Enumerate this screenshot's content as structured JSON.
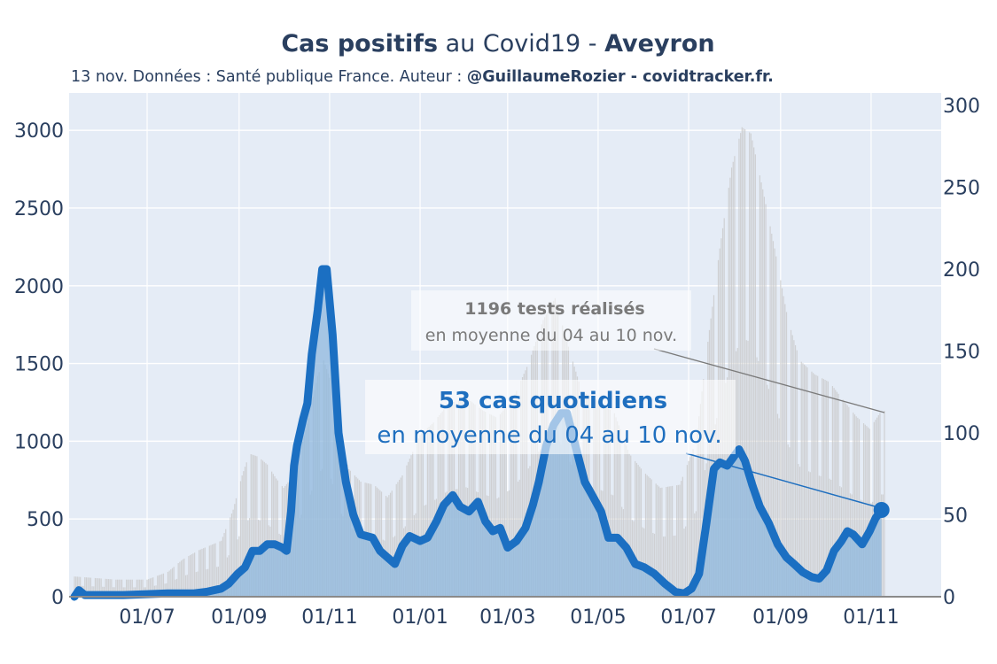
{
  "header": {
    "title_bold_1": "Cas positifs",
    "title_mid": " au Covid19 - ",
    "title_bold_2": "Aveyron",
    "subtitle_plain": "13 nov. Données : Santé publique France. Auteur : ",
    "subtitle_bold": "@GuillaumeRozier - covidtracker.fr."
  },
  "annotations": {
    "tests_line1": "1196 tests réalisés",
    "tests_line2": "en moyenne du 04 au 10 nov.",
    "cases_line1": "53 cas quotidiens",
    "cases_line2": "en moyenne du 04 au 10 nov."
  },
  "colors": {
    "plot_bg": "#e5ecf6",
    "cases_line": "#1b6fc2",
    "cases_fill": "#8fb8dd",
    "tests_bars": "#c7c7c7",
    "tests_leader": "#7a7a7a",
    "cases_leader": "#1f6fbf",
    "axis_text": "#2a3f5f"
  },
  "chart_data": {
    "type": "line",
    "x_start": "2020-05-13",
    "x_end": "2021-11-10",
    "x_tick_labels": [
      "01/07",
      "01/09",
      "01/11",
      "01/01",
      "01/03",
      "01/05",
      "01/07",
      "01/09",
      "01/11"
    ],
    "x_tick_dates": [
      "2020-07-01",
      "2020-09-01",
      "2020-11-01",
      "2021-01-01",
      "2021-03-01",
      "2021-05-01",
      "2021-07-01",
      "2021-09-01",
      "2021-11-01"
    ],
    "y_left_ticks": [
      0,
      500,
      1000,
      1500,
      2000,
      2500,
      3000
    ],
    "y_left_range": [
      0,
      3240
    ],
    "y_right_ticks": [
      0,
      50,
      100,
      150,
      200,
      250,
      300
    ],
    "y_right_range": [
      0,
      300
    ],
    "grid": true,
    "series": [
      {
        "axis": "right",
        "style": "thick-line-with-fill",
        "points": [
          [
            "2020-05-13",
            0
          ],
          [
            "2020-05-16",
            4
          ],
          [
            "2020-05-20",
            1
          ],
          [
            "2020-06-15",
            1
          ],
          [
            "2020-07-15",
            2
          ],
          [
            "2020-08-01",
            2
          ],
          [
            "2020-08-10",
            3
          ],
          [
            "2020-08-20",
            5
          ],
          [
            "2020-08-25",
            8
          ],
          [
            "2020-08-31",
            14
          ],
          [
            "2020-09-05",
            18
          ],
          [
            "2020-09-10",
            28
          ],
          [
            "2020-09-15",
            28
          ],
          [
            "2020-09-20",
            32
          ],
          [
            "2020-09-25",
            32
          ],
          [
            "2020-09-30",
            30
          ],
          [
            "2020-10-03",
            28
          ],
          [
            "2020-10-06",
            52
          ],
          [
            "2020-10-08",
            80
          ],
          [
            "2020-10-10",
            92
          ],
          [
            "2020-10-14",
            108
          ],
          [
            "2020-10-17",
            118
          ],
          [
            "2020-10-20",
            148
          ],
          [
            "2020-10-24",
            175
          ],
          [
            "2020-10-27",
            200
          ],
          [
            "2020-10-30",
            200
          ],
          [
            "2020-11-03",
            160
          ],
          [
            "2020-11-07",
            100
          ],
          [
            "2020-11-12",
            70
          ],
          [
            "2020-11-17",
            50
          ],
          [
            "2020-11-22",
            38
          ],
          [
            "2020-11-30",
            36
          ],
          [
            "2020-12-05",
            28
          ],
          [
            "2020-12-10",
            24
          ],
          [
            "2020-12-15",
            20
          ],
          [
            "2020-12-20",
            31
          ],
          [
            "2020-12-25",
            37
          ],
          [
            "2021-01-01",
            34
          ],
          [
            "2021-01-06",
            36
          ],
          [
            "2021-01-12",
            46
          ],
          [
            "2021-01-17",
            56
          ],
          [
            "2021-01-23",
            62
          ],
          [
            "2021-01-28",
            55
          ],
          [
            "2021-02-03",
            52
          ],
          [
            "2021-02-09",
            58
          ],
          [
            "2021-02-14",
            46
          ],
          [
            "2021-02-19",
            40
          ],
          [
            "2021-02-24",
            42
          ],
          [
            "2021-03-01",
            30
          ],
          [
            "2021-03-07",
            34
          ],
          [
            "2021-03-13",
            42
          ],
          [
            "2021-03-18",
            56
          ],
          [
            "2021-03-22",
            70
          ],
          [
            "2021-03-27",
            92
          ],
          [
            "2021-04-01",
            105
          ],
          [
            "2021-04-06",
            112
          ],
          [
            "2021-04-10",
            112
          ],
          [
            "2021-04-14",
            98
          ],
          [
            "2021-04-18",
            84
          ],
          [
            "2021-04-22",
            70
          ],
          [
            "2021-04-27",
            62
          ],
          [
            "2021-05-03",
            52
          ],
          [
            "2021-05-08",
            36
          ],
          [
            "2021-05-14",
            36
          ],
          [
            "2021-05-20",
            30
          ],
          [
            "2021-05-26",
            20
          ],
          [
            "2021-06-01",
            18
          ],
          [
            "2021-06-08",
            14
          ],
          [
            "2021-06-15",
            8
          ],
          [
            "2021-06-22",
            3
          ],
          [
            "2021-06-28",
            2
          ],
          [
            "2021-07-03",
            5
          ],
          [
            "2021-07-08",
            14
          ],
          [
            "2021-07-13",
            45
          ],
          [
            "2021-07-18",
            78
          ],
          [
            "2021-07-22",
            82
          ],
          [
            "2021-07-27",
            80
          ],
          [
            "2021-07-31",
            85
          ],
          [
            "2021-08-04",
            90
          ],
          [
            "2021-08-08",
            83
          ],
          [
            "2021-08-13",
            68
          ],
          [
            "2021-08-18",
            55
          ],
          [
            "2021-08-24",
            45
          ],
          [
            "2021-08-30",
            32
          ],
          [
            "2021-09-05",
            24
          ],
          [
            "2021-09-10",
            20
          ],
          [
            "2021-09-16",
            15
          ],
          [
            "2021-09-22",
            12
          ],
          [
            "2021-09-27",
            11
          ],
          [
            "2021-10-02",
            16
          ],
          [
            "2021-10-07",
            28
          ],
          [
            "2021-10-12",
            34
          ],
          [
            "2021-10-16",
            40
          ],
          [
            "2021-10-20",
            38
          ],
          [
            "2021-10-26",
            32
          ],
          [
            "2021-10-31",
            40
          ],
          [
            "2021-11-04",
            48
          ],
          [
            "2021-11-08",
            53
          ]
        ]
      },
      {
        "axis": "left",
        "style": "daily-bars",
        "points": [
          [
            "2020-05-13",
            130
          ],
          [
            "2020-06-10",
            110
          ],
          [
            "2020-07-01",
            110
          ],
          [
            "2020-07-15",
            160
          ],
          [
            "2020-07-25",
            240
          ],
          [
            "2020-08-05",
            300
          ],
          [
            "2020-08-20",
            360
          ],
          [
            "2020-08-28",
            560
          ],
          [
            "2020-09-03",
            780
          ],
          [
            "2020-09-08",
            920
          ],
          [
            "2020-09-14",
            900
          ],
          [
            "2020-09-20",
            850
          ],
          [
            "2020-09-26",
            760
          ],
          [
            "2020-10-01",
            700
          ],
          [
            "2020-10-06",
            760
          ],
          [
            "2020-10-12",
            920
          ],
          [
            "2020-10-18",
            1150
          ],
          [
            "2020-10-24",
            1420
          ],
          [
            "2020-10-28",
            1520
          ],
          [
            "2020-11-02",
            1380
          ],
          [
            "2020-11-08",
            1000
          ],
          [
            "2020-11-14",
            820
          ],
          [
            "2020-11-22",
            740
          ],
          [
            "2020-12-01",
            720
          ],
          [
            "2020-12-10",
            640
          ],
          [
            "2020-12-20",
            780
          ],
          [
            "2021-01-01",
            1040
          ],
          [
            "2021-01-10",
            1120
          ],
          [
            "2021-01-20",
            1240
          ],
          [
            "2021-02-01",
            1280
          ],
          [
            "2021-02-12",
            1200
          ],
          [
            "2021-02-22",
            1150
          ],
          [
            "2021-03-05",
            1280
          ],
          [
            "2021-03-15",
            1500
          ],
          [
            "2021-03-25",
            1780
          ],
          [
            "2021-04-02",
            1920
          ],
          [
            "2021-04-10",
            1640
          ],
          [
            "2021-04-20",
            1320
          ],
          [
            "2021-05-01",
            1260
          ],
          [
            "2021-05-12",
            1180
          ],
          [
            "2021-05-22",
            920
          ],
          [
            "2021-06-01",
            800
          ],
          [
            "2021-06-12",
            700
          ],
          [
            "2021-06-25",
            720
          ],
          [
            "2021-07-06",
            1000
          ],
          [
            "2021-07-14",
            1640
          ],
          [
            "2021-07-22",
            2240
          ],
          [
            "2021-07-30",
            2760
          ],
          [
            "2021-08-06",
            3020
          ],
          [
            "2021-08-12",
            2980
          ],
          [
            "2021-08-20",
            2620
          ],
          [
            "2021-08-28",
            2240
          ],
          [
            "2021-09-06",
            1780
          ],
          [
            "2021-09-14",
            1520
          ],
          [
            "2021-09-24",
            1430
          ],
          [
            "2021-10-04",
            1380
          ],
          [
            "2021-10-12",
            1280
          ],
          [
            "2021-10-22",
            1160
          ],
          [
            "2021-10-31",
            1080
          ],
          [
            "2021-11-08",
            1196
          ]
        ]
      }
    ]
  }
}
